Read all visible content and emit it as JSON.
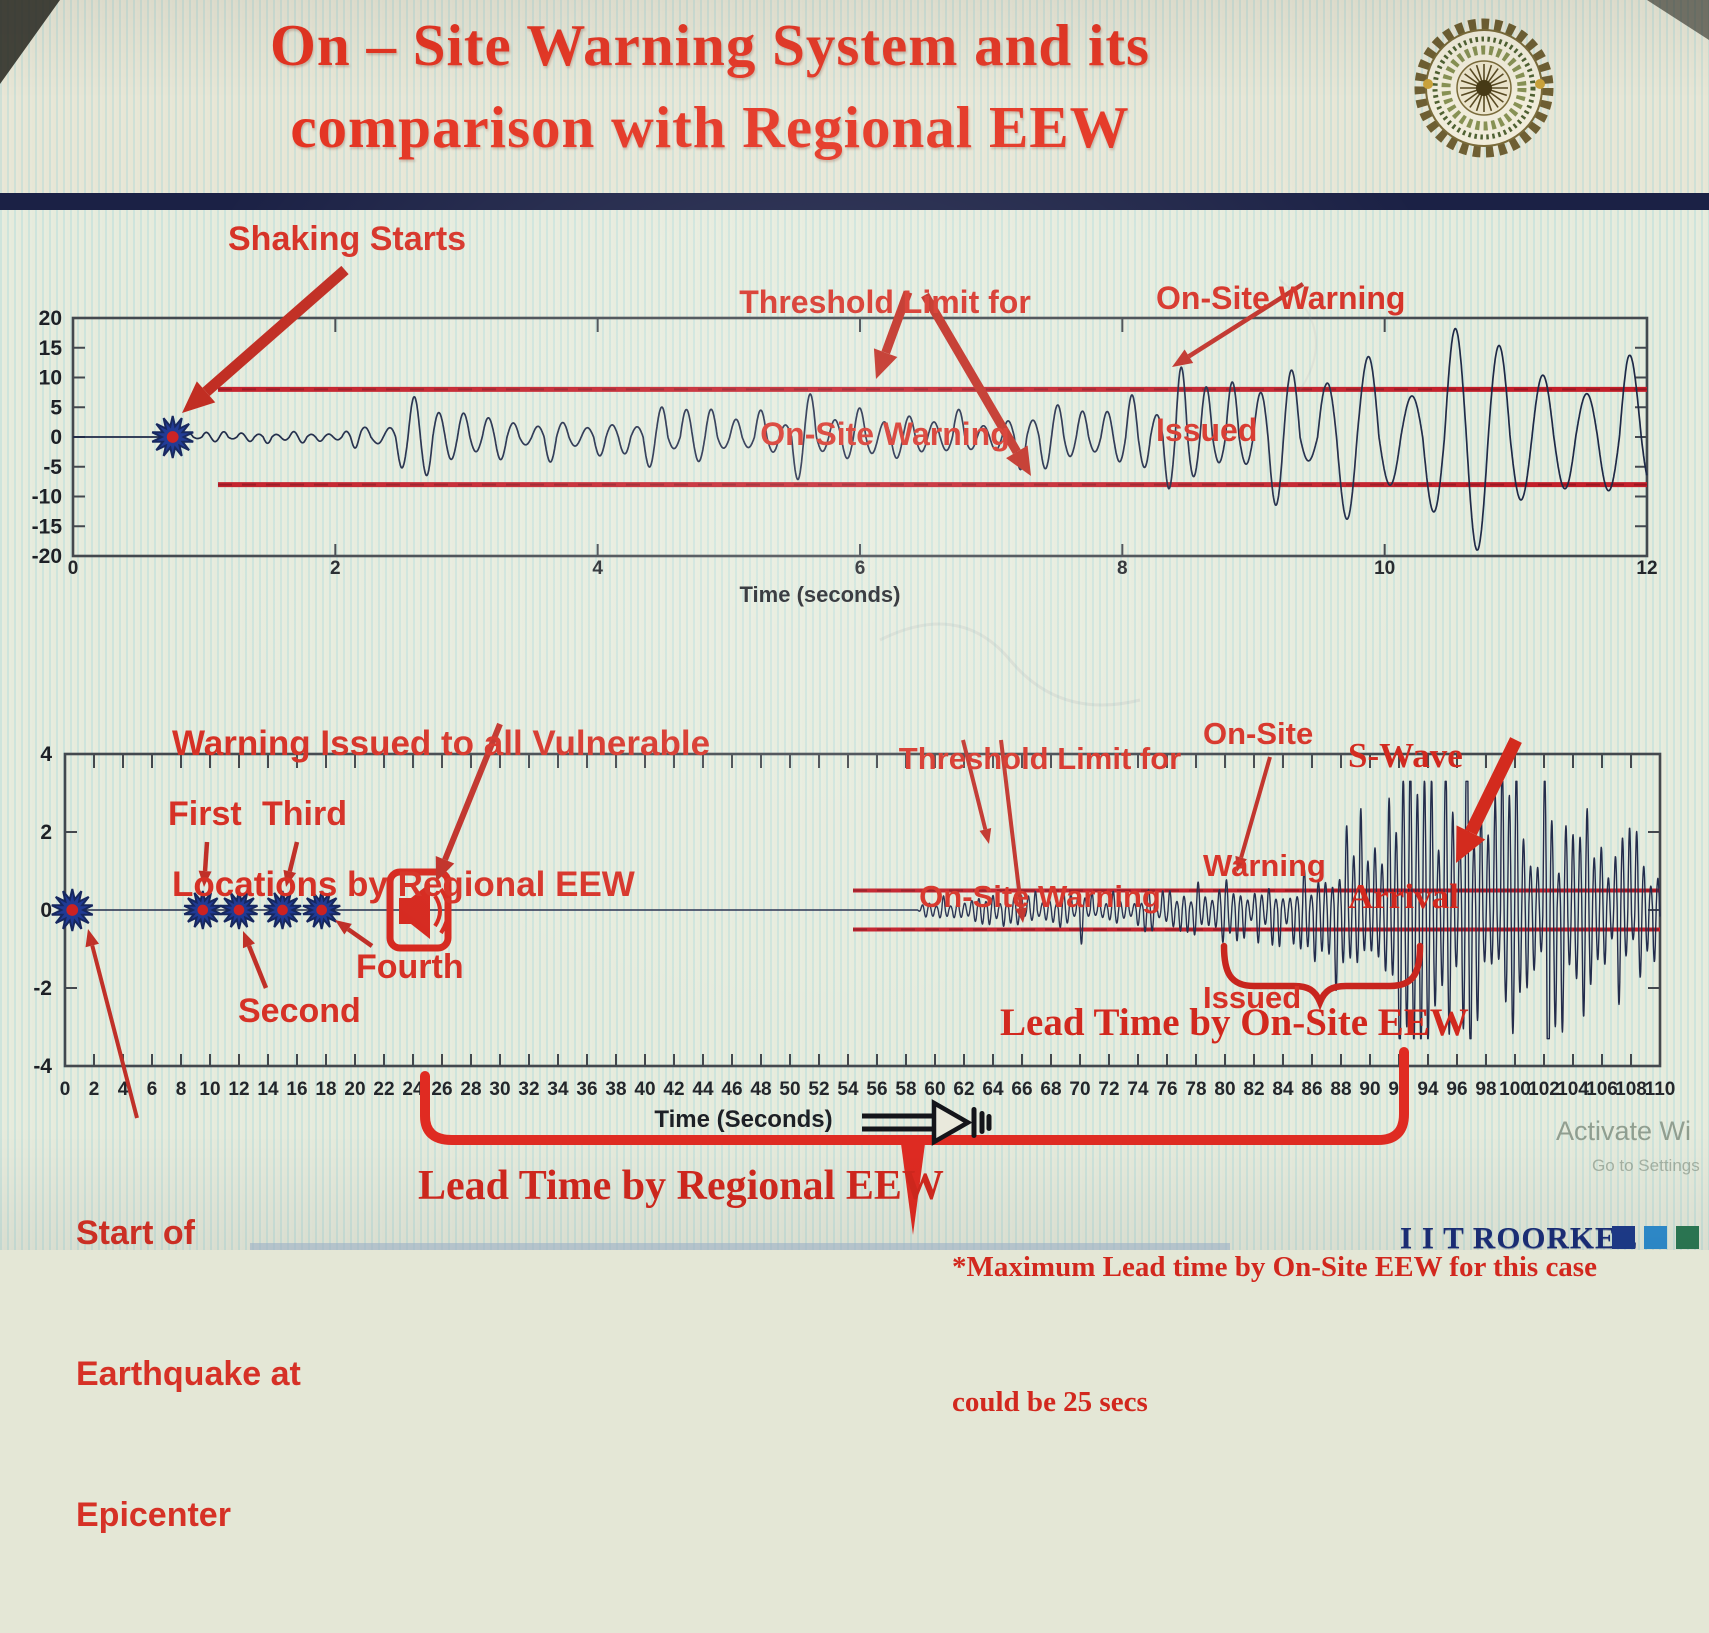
{
  "title": {
    "line1": "On – Site Warning System and its",
    "line2": "comparison with Regional EEW"
  },
  "branding": {
    "logo": "iit-roorkee-emblem",
    "footer_logo": "I I T ROORKEE",
    "footer_squares": [
      "#1e3c8c",
      "#2f8ed0",
      "#2c7a55"
    ],
    "watermark_line1": "Activate Wi",
    "watermark_line2": "Go to Settings"
  },
  "colors": {
    "title_red": "#e43422",
    "annotation_red": "#d63126",
    "arrow_red": "#c02b20",
    "threshold_red": "#c31f2a",
    "bracket_red": "#e02b22",
    "waveform_navy": "#1e2947",
    "navy_bar": "#1b2145",
    "footer_navy": "#1b2f7a"
  },
  "annotations": {
    "shaking_starts": "Shaking Starts",
    "threshold_top": {
      "line1": "Threshold Limit for",
      "line2": "On-Site Warning"
    },
    "onsite_top": {
      "line1": "On-Site Warning",
      "line2": "Issued"
    },
    "vulnerable": {
      "line1": "Warning Issued to all Vulnerable",
      "line2": "Locations by Regional EEW"
    },
    "p_labels": {
      "first": "First",
      "second": "Second",
      "third": "Third",
      "fourth": "Fourth"
    },
    "threshold_bottom": {
      "line1": "Threshold Limit for",
      "line2": "On-Site Warning"
    },
    "onsite_bottom": {
      "line1": "On-Site",
      "line2": "Warning",
      "line3": "Issued"
    },
    "swave": {
      "line1": "S-Wave",
      "line2": "Arrival"
    },
    "lead_onsite": "Lead Time by On-Site EEW",
    "lead_regional": "Lead Time by Regional EEW",
    "start_eq": {
      "line1": "Start of",
      "line2": "Earthquake at",
      "line3": "Epicenter"
    },
    "max_lead": {
      "line1": "*Maximum Lead time by On-Site EEW for this case",
      "line2": "could be 25 secs"
    }
  },
  "chart_data": [
    {
      "type": "line",
      "name": "on-site-station-seismogram",
      "xlabel": "Time (seconds)",
      "xlim": [
        0,
        12
      ],
      "ylim": [
        -20,
        20
      ],
      "xticks": [
        0,
        2,
        4,
        6,
        8,
        10,
        12
      ],
      "yticks": [
        20,
        15,
        10,
        5,
        0,
        -5,
        -10,
        -15,
        -20
      ],
      "grid": false,
      "threshold_upper": 8,
      "threshold_lower": -8,
      "shaking_start_time": 0.76,
      "onsite_warning_issued_time": 8.4,
      "series": [
        {
          "name": "ground motion",
          "amplitude_envelope": [
            [
              0,
              0
            ],
            [
              0.76,
              0
            ],
            [
              0.82,
              0.5
            ],
            [
              1.3,
              0.7
            ],
            [
              2.0,
              1.0
            ],
            [
              2.3,
              1.6
            ],
            [
              2.5,
              4.0
            ],
            [
              2.75,
              4.6
            ],
            [
              3.0,
              3.4
            ],
            [
              3.3,
              2.6
            ],
            [
              3.8,
              3.1
            ],
            [
              4.2,
              2.7
            ],
            [
              4.5,
              4.1
            ],
            [
              4.9,
              3.3
            ],
            [
              5.4,
              4.4
            ],
            [
              5.9,
              4.8
            ],
            [
              6.3,
              3.6
            ],
            [
              6.8,
              4.3
            ],
            [
              7.3,
              3.7
            ],
            [
              7.8,
              4.6
            ],
            [
              8.1,
              5.4
            ],
            [
              8.35,
              8.2
            ],
            [
              8.6,
              6.2
            ],
            [
              9.0,
              7.0
            ],
            [
              9.25,
              9.4
            ],
            [
              9.55,
              7.8
            ],
            [
              9.9,
              12.5
            ],
            [
              10.15,
              14.5
            ],
            [
              10.4,
              16.8
            ],
            [
              10.7,
              15.5
            ],
            [
              11.0,
              14.0
            ],
            [
              11.3,
              13.0
            ],
            [
              11.6,
              14.8
            ],
            [
              11.85,
              16.0
            ],
            [
              12.0,
              12.0
            ]
          ]
        }
      ]
    },
    {
      "type": "line",
      "name": "regional-vs-onsite-timeline-seismogram",
      "xlabel": "Time (Seconds)",
      "xlim": [
        0,
        110
      ],
      "ylim": [
        -4,
        4
      ],
      "xticks": [
        0,
        2,
        4,
        6,
        8,
        10,
        12,
        14,
        16,
        18,
        20,
        22,
        24,
        26,
        28,
        30,
        32,
        34,
        36,
        38,
        40,
        42,
        44,
        46,
        48,
        50,
        52,
        54,
        56,
        58,
        60,
        62,
        64,
        66,
        68,
        70,
        72,
        74,
        76,
        78,
        80,
        82,
        84,
        86,
        88,
        90,
        92,
        94,
        96,
        98,
        100,
        102,
        104,
        106,
        108,
        110
      ],
      "yticks": [
        4,
        2,
        0,
        -2,
        -4
      ],
      "grid": false,
      "threshold_upper": 0.5,
      "threshold_lower": -0.5,
      "epicenter_time": 0.5,
      "p_wave_detection_times": [
        9.5,
        12,
        15,
        17.7
      ],
      "regional_warning_time": 24,
      "onsite_warning_issued_time": 81,
      "s_wave_arrival_time": 95,
      "lead_time_regional_span": [
        24,
        93
      ],
      "lead_time_onsite_span": [
        80,
        95
      ],
      "max_lead_time_onsite_secs": 25,
      "series": [
        {
          "name": "ground motion at vulnerable site",
          "amplitude_envelope": [
            [
              0,
              0
            ],
            [
              58.8,
              0
            ],
            [
              59.3,
              0.13
            ],
            [
              61,
              0.18
            ],
            [
              63,
              0.24
            ],
            [
              65,
              0.28
            ],
            [
              67,
              0.32
            ],
            [
              69,
              0.33
            ],
            [
              71,
              0.3
            ],
            [
              73,
              0.33
            ],
            [
              75,
              0.38
            ],
            [
              77,
              0.42
            ],
            [
              79,
              0.5
            ],
            [
              81,
              0.55
            ],
            [
              83,
              0.58
            ],
            [
              85,
              0.68
            ],
            [
              87,
              1.0
            ],
            [
              88.5,
              1.6
            ],
            [
              90,
              2.3
            ],
            [
              91.5,
              2.8
            ],
            [
              93,
              2.9
            ],
            [
              94.5,
              2.6
            ],
            [
              96,
              2.8
            ],
            [
              97.5,
              2.4
            ],
            [
              99,
              2.7
            ],
            [
              100.5,
              2.2
            ],
            [
              102,
              2.4
            ],
            [
              103.5,
              1.9
            ],
            [
              105,
              1.8
            ],
            [
              106.5,
              1.6
            ],
            [
              108,
              1.5
            ],
            [
              110,
              1.3
            ]
          ]
        }
      ]
    }
  ]
}
